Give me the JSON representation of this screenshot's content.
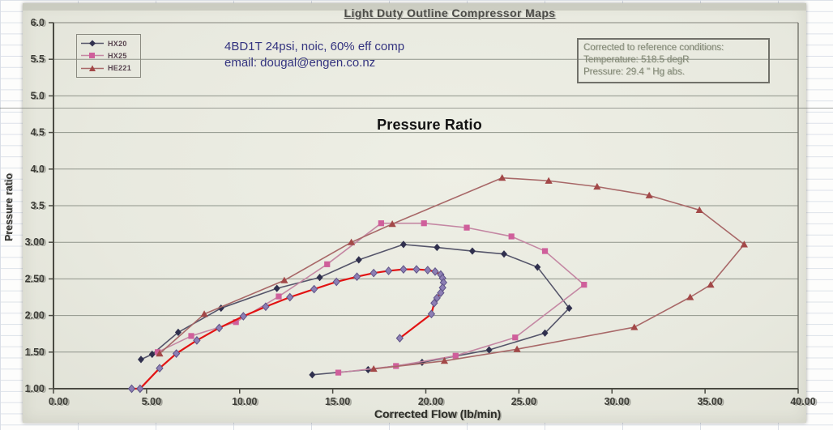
{
  "page": {
    "title": "Light Duty Outline Compressor Maps",
    "note_line1": "4BD1T 24psi, noic, 60% eff comp",
    "note_line2": "email: dougal@engen.co.nz",
    "center_label": "Pressure Ratio",
    "ref_box_line1": "Corrected to reference conditions:",
    "ref_box_line2": "Temperature: 518.5 degR",
    "ref_box_line3": "Pressure: 29.4 \" Hg abs."
  },
  "colors": {
    "paper": "#e8e9df",
    "grid": "#8f948a",
    "axis": "#4a4a42",
    "tick_text": "#3c3c36",
    "note_blue": "#33337f",
    "operating_line_red": "#e21313"
  },
  "chart_data": {
    "type": "line",
    "title": "Light Duty Outline Compressor Maps",
    "xlabel": "Corrected Flow (lb/min)",
    "ylabel": "Pressure ratio",
    "xlim": [
      0,
      40
    ],
    "ylim": [
      1.0,
      6.0
    ],
    "grid": true,
    "legend_position": "top-left",
    "x_ticks": [
      {
        "value": 0,
        "label": "0.00"
      },
      {
        "value": 5,
        "label": "5.00"
      },
      {
        "value": 10,
        "label": "10.00"
      },
      {
        "value": 15,
        "label": "15.00"
      },
      {
        "value": 20,
        "label": "20.00"
      },
      {
        "value": 25,
        "label": "25.00"
      },
      {
        "value": 30,
        "label": "30.00"
      },
      {
        "value": 35,
        "label": "35.00"
      },
      {
        "value": 40,
        "label": "40.00"
      }
    ],
    "y_ticks": [
      {
        "value": 6.0,
        "label": "6.0"
      },
      {
        "value": 5.5,
        "label": "5.5"
      },
      {
        "value": 5.0,
        "label": "5.0"
      },
      {
        "value": 4.5,
        "label": "4.5"
      },
      {
        "value": 4.0,
        "label": "4.0"
      },
      {
        "value": 3.5,
        "label": "3.5"
      },
      {
        "value": 3.0,
        "label": "3.00"
      },
      {
        "value": 2.5,
        "label": "2.50"
      },
      {
        "value": 2.0,
        "label": "2.00"
      },
      {
        "value": 1.5,
        "label": "1.50"
      },
      {
        "value": 1.0,
        "label": "1.00"
      }
    ],
    "series": [
      {
        "name": "HX20",
        "color": "#55556a",
        "marker": "diamond",
        "marker_color": "#30304e",
        "line_width": 1.6,
        "in_legend": true,
        "points": [
          [
            4.7,
            1.4
          ],
          [
            5.3,
            1.47
          ],
          [
            6.7,
            1.77
          ],
          [
            9.0,
            2.1
          ],
          [
            12.0,
            2.37
          ],
          [
            14.3,
            2.52
          ],
          [
            16.4,
            2.76
          ],
          [
            18.8,
            2.97
          ],
          [
            20.6,
            2.93
          ],
          [
            22.5,
            2.88
          ],
          [
            24.2,
            2.84
          ],
          [
            26.0,
            2.66
          ],
          [
            27.7,
            2.1
          ],
          [
            26.4,
            1.76
          ],
          [
            23.4,
            1.53
          ],
          [
            19.8,
            1.36
          ],
          [
            16.9,
            1.26
          ],
          [
            13.9,
            1.19
          ]
        ]
      },
      {
        "name": "HX25",
        "color": "#c487a3",
        "marker": "square",
        "marker_color": "#cf5f9b",
        "line_width": 1.6,
        "in_legend": true,
        "points": [
          [
            5.6,
            1.5
          ],
          [
            7.4,
            1.72
          ],
          [
            9.8,
            1.91
          ],
          [
            12.1,
            2.26
          ],
          [
            14.7,
            2.7
          ],
          [
            17.6,
            3.26
          ],
          [
            19.9,
            3.26
          ],
          [
            22.2,
            3.2
          ],
          [
            24.6,
            3.08
          ],
          [
            26.4,
            2.88
          ],
          [
            28.5,
            2.42
          ],
          [
            24.8,
            1.7
          ],
          [
            21.6,
            1.45
          ],
          [
            18.4,
            1.31
          ],
          [
            15.3,
            1.22
          ]
        ]
      },
      {
        "name": "HE221",
        "color": "#a86868",
        "marker": "triangle",
        "marker_color": "#a34848",
        "line_width": 1.6,
        "in_legend": true,
        "points": [
          [
            5.7,
            1.48
          ],
          [
            8.1,
            2.02
          ],
          [
            12.4,
            2.48
          ],
          [
            16.0,
            3.0
          ],
          [
            18.2,
            3.25
          ],
          [
            24.1,
            3.88
          ],
          [
            26.6,
            3.84
          ],
          [
            29.2,
            3.76
          ],
          [
            32.0,
            3.64
          ],
          [
            34.7,
            3.44
          ],
          [
            37.1,
            2.97
          ],
          [
            35.3,
            2.42
          ],
          [
            34.2,
            2.25
          ],
          [
            31.2,
            1.84
          ],
          [
            24.9,
            1.54
          ],
          [
            21.0,
            1.38
          ],
          [
            17.2,
            1.27
          ]
        ]
      },
      {
        "name": "operating-line",
        "color": "#e21313",
        "marker": "diamond",
        "marker_color": "#8d7fb5",
        "marker_stroke": "#5f5486",
        "line_width": 2.2,
        "in_legend": false,
        "points": [
          [
            4.2,
            1.0
          ],
          [
            4.65,
            1.0
          ],
          [
            5.7,
            1.28
          ],
          [
            6.6,
            1.48
          ],
          [
            7.7,
            1.66
          ],
          [
            8.9,
            1.83
          ],
          [
            10.2,
            1.99
          ],
          [
            11.4,
            2.12
          ],
          [
            12.7,
            2.25
          ],
          [
            14.0,
            2.36
          ],
          [
            15.2,
            2.46
          ],
          [
            16.3,
            2.53
          ],
          [
            17.2,
            2.58
          ],
          [
            18.0,
            2.61
          ],
          [
            18.8,
            2.63
          ],
          [
            19.5,
            2.63
          ],
          [
            20.1,
            2.62
          ],
          [
            20.5,
            2.6
          ],
          [
            20.8,
            2.56
          ],
          [
            20.9,
            2.51
          ],
          [
            20.95,
            2.45
          ],
          [
            20.9,
            2.38
          ],
          [
            20.8,
            2.31
          ],
          [
            20.6,
            2.24
          ],
          [
            20.45,
            2.17
          ],
          [
            20.3,
            2.02
          ],
          [
            18.6,
            1.69
          ]
        ]
      }
    ]
  }
}
